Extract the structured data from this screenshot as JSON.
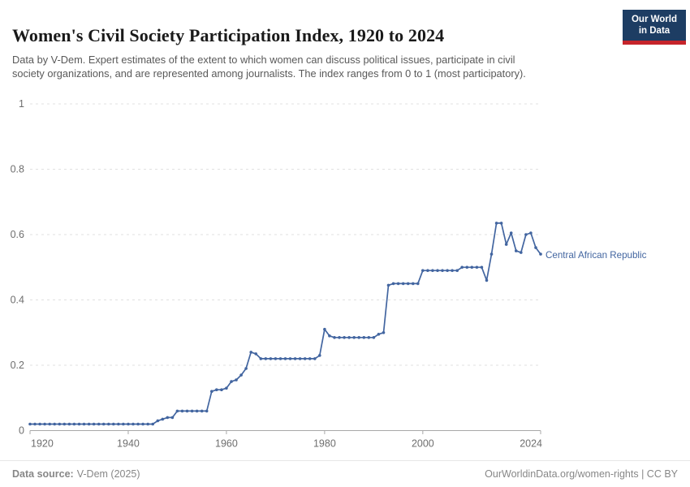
{
  "header": {
    "title": "Women's Civil Society Participation Index, 1920 to 2024",
    "subtitle": "Data by V-Dem. Expert estimates of the extent to which women can discuss political issues, participate in civil society organizations, and are represented among journalists. The index ranges from 0 to 1 (most participatory).",
    "logo": {
      "line1": "Our World",
      "line2": "in Data",
      "bg_color": "#1d3d63",
      "bar_color": "#c6242b"
    }
  },
  "chart": {
    "series_label": "Central African Republic",
    "line_color": "#4265a0",
    "axis_text_color": "#6e6e6e",
    "gridline_color": "#e0e0e0"
  },
  "footer": {
    "source_label": "Data source:",
    "source_value": "V-Dem (2025)",
    "credit": "OurWorldinData.org/women-rights | CC BY"
  },
  "chart_data": {
    "type": "line",
    "title": "Women's Civil Society Participation Index, 1920 to 2024",
    "xlabel": "",
    "ylabel": "",
    "xlim": [
      1920,
      2024
    ],
    "ylim": [
      0,
      1
    ],
    "x_ticks": [
      1920,
      1940,
      1960,
      1980,
      2000,
      2024
    ],
    "y_ticks": [
      0,
      0.2,
      0.4,
      0.6,
      0.8,
      1
    ],
    "grid": "horizontal-dashed",
    "legend_position": "right-of-line-end",
    "series": [
      {
        "name": "Central African Republic",
        "color": "#4265a0",
        "points": [
          [
            1920,
            0.02
          ],
          [
            1921,
            0.02
          ],
          [
            1922,
            0.02
          ],
          [
            1923,
            0.02
          ],
          [
            1924,
            0.02
          ],
          [
            1925,
            0.02
          ],
          [
            1926,
            0.02
          ],
          [
            1927,
            0.02
          ],
          [
            1928,
            0.02
          ],
          [
            1929,
            0.02
          ],
          [
            1930,
            0.02
          ],
          [
            1931,
            0.02
          ],
          [
            1932,
            0.02
          ],
          [
            1933,
            0.02
          ],
          [
            1934,
            0.02
          ],
          [
            1935,
            0.02
          ],
          [
            1936,
            0.02
          ],
          [
            1937,
            0.02
          ],
          [
            1938,
            0.02
          ],
          [
            1939,
            0.02
          ],
          [
            1940,
            0.02
          ],
          [
            1941,
            0.02
          ],
          [
            1942,
            0.02
          ],
          [
            1943,
            0.02
          ],
          [
            1944,
            0.02
          ],
          [
            1945,
            0.02
          ],
          [
            1946,
            0.03
          ],
          [
            1947,
            0.035
          ],
          [
            1948,
            0.04
          ],
          [
            1949,
            0.04
          ],
          [
            1950,
            0.06
          ],
          [
            1951,
            0.06
          ],
          [
            1952,
            0.06
          ],
          [
            1953,
            0.06
          ],
          [
            1954,
            0.06
          ],
          [
            1955,
            0.06
          ],
          [
            1956,
            0.06
          ],
          [
            1957,
            0.12
          ],
          [
            1958,
            0.125
          ],
          [
            1959,
            0.125
          ],
          [
            1960,
            0.13
          ],
          [
            1961,
            0.15
          ],
          [
            1962,
            0.155
          ],
          [
            1963,
            0.17
          ],
          [
            1964,
            0.19
          ],
          [
            1965,
            0.24
          ],
          [
            1966,
            0.235
          ],
          [
            1967,
            0.22
          ],
          [
            1968,
            0.22
          ],
          [
            1969,
            0.22
          ],
          [
            1970,
            0.22
          ],
          [
            1971,
            0.22
          ],
          [
            1972,
            0.22
          ],
          [
            1973,
            0.22
          ],
          [
            1974,
            0.22
          ],
          [
            1975,
            0.22
          ],
          [
            1976,
            0.22
          ],
          [
            1977,
            0.22
          ],
          [
            1978,
            0.22
          ],
          [
            1979,
            0.23
          ],
          [
            1980,
            0.31
          ],
          [
            1981,
            0.29
          ],
          [
            1982,
            0.285
          ],
          [
            1983,
            0.285
          ],
          [
            1984,
            0.285
          ],
          [
            1985,
            0.285
          ],
          [
            1986,
            0.285
          ],
          [
            1987,
            0.285
          ],
          [
            1988,
            0.285
          ],
          [
            1989,
            0.285
          ],
          [
            1990,
            0.285
          ],
          [
            1991,
            0.295
          ],
          [
            1992,
            0.3
          ],
          [
            1993,
            0.445
          ],
          [
            1994,
            0.45
          ],
          [
            1995,
            0.45
          ],
          [
            1996,
            0.45
          ],
          [
            1997,
            0.45
          ],
          [
            1998,
            0.45
          ],
          [
            1999,
            0.45
          ],
          [
            2000,
            0.49
          ],
          [
            2001,
            0.49
          ],
          [
            2002,
            0.49
          ],
          [
            2003,
            0.49
          ],
          [
            2004,
            0.49
          ],
          [
            2005,
            0.49
          ],
          [
            2006,
            0.49
          ],
          [
            2007,
            0.49
          ],
          [
            2008,
            0.5
          ],
          [
            2009,
            0.5
          ],
          [
            2010,
            0.5
          ],
          [
            2011,
            0.5
          ],
          [
            2012,
            0.5
          ],
          [
            2013,
            0.46
          ],
          [
            2014,
            0.54
          ],
          [
            2015,
            0.635
          ],
          [
            2016,
            0.635
          ],
          [
            2017,
            0.57
          ],
          [
            2018,
            0.605
          ],
          [
            2019,
            0.55
          ],
          [
            2020,
            0.545
          ],
          [
            2021,
            0.6
          ],
          [
            2022,
            0.605
          ],
          [
            2023,
            0.56
          ],
          [
            2024,
            0.54
          ]
        ]
      }
    ]
  }
}
